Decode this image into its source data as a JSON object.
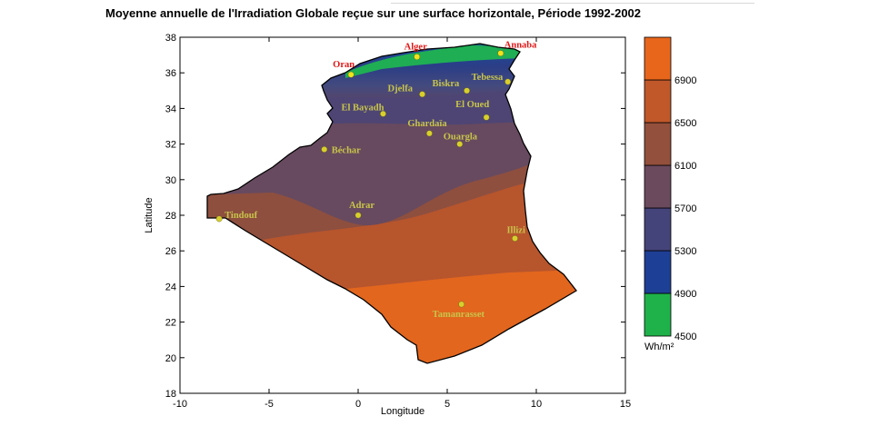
{
  "title": "Moyenne annuelle de l'Irradiation Globale reçue sur une surface horizontale, Période 1992-2002",
  "axes": {
    "x_label": "Longitude",
    "y_label": "Latitude",
    "x_range": [
      -10,
      15
    ],
    "y_range": [
      18,
      38
    ],
    "x_ticks": [
      "-10",
      "-5",
      "0",
      "5",
      "10",
      "15"
    ],
    "y_ticks": [
      "18",
      "20",
      "22",
      "24",
      "26",
      "28",
      "30",
      "32",
      "34",
      "36",
      "38"
    ]
  },
  "legend": {
    "unit": "Wh/m²",
    "ticks": [
      "4500",
      "4900",
      "5300",
      "5700",
      "6100",
      "6500",
      "6900"
    ],
    "bands": [
      {
        "from": 4500,
        "to": 4900,
        "color": "#1fb24a"
      },
      {
        "from": 4900,
        "to": 5300,
        "color": "#1e3f96"
      },
      {
        "from": 5300,
        "to": 5700,
        "color": "#45447a"
      },
      {
        "from": 5700,
        "to": 6100,
        "color": "#6b4a5e"
      },
      {
        "from": 6100,
        "to": 6500,
        "color": "#93503c"
      },
      {
        "from": 6500,
        "to": 6900,
        "color": "#c0582a"
      },
      {
        "from": 6900,
        "to": 7300,
        "color": "#e8661c"
      }
    ]
  },
  "cities": [
    {
      "name": "Alger",
      "lon": 3.3,
      "lat": 36.9,
      "color": "#e01818"
    },
    {
      "name": "Annaba",
      "lon": 8.0,
      "lat": 37.1,
      "color": "#e01818"
    },
    {
      "name": "Oran",
      "lon": -0.4,
      "lat": 35.9,
      "color": "#e01818"
    },
    {
      "name": "Tebessa",
      "lon": 8.4,
      "lat": 35.5,
      "color": "#c8c44a"
    },
    {
      "name": "Biskra",
      "lon": 6.1,
      "lat": 35.0,
      "color": "#c8c44a"
    },
    {
      "name": "Djelfa",
      "lon": 3.6,
      "lat": 34.8,
      "color": "#c8c44a"
    },
    {
      "name": "El Bayadh",
      "lon": 1.4,
      "lat": 33.7,
      "color": "#c8c44a"
    },
    {
      "name": "El Oued",
      "lon": 7.2,
      "lat": 33.5,
      "color": "#c8c44a"
    },
    {
      "name": "Ghardaïa",
      "lon": 4.0,
      "lat": 32.6,
      "color": "#c8c44a"
    },
    {
      "name": "Ouargla",
      "lon": 5.7,
      "lat": 32.0,
      "color": "#c8c44a"
    },
    {
      "name": "Béchar",
      "lon": -1.9,
      "lat": 31.7,
      "color": "#c8c44a"
    },
    {
      "name": "Tindouf",
      "lon": -7.8,
      "lat": 27.8,
      "color": "#c8c44a"
    },
    {
      "name": "Adrar",
      "lon": 0.0,
      "lat": 28.0,
      "color": "#c8c44a"
    },
    {
      "name": "Illizi",
      "lon": 8.8,
      "lat": 26.7,
      "color": "#c8c44a"
    },
    {
      "name": "Tamanrasset",
      "lon": 5.8,
      "lat": 23.0,
      "color": "#c8c44a"
    }
  ]
}
